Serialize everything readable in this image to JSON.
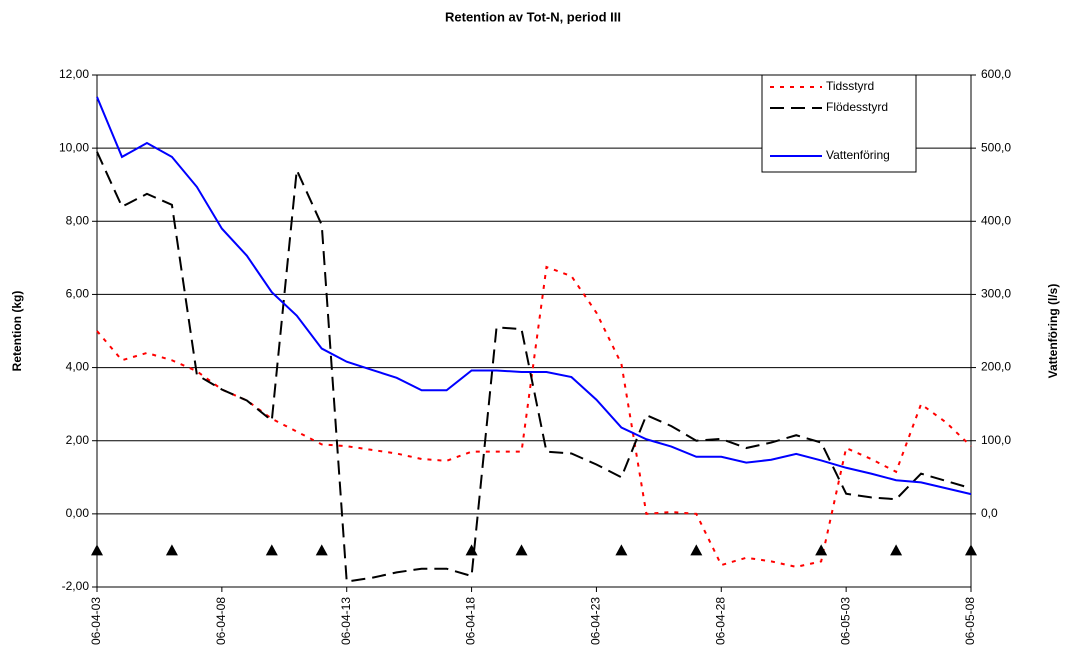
{
  "chart_data": {
    "type": "line",
    "title": "Retention av Tot-N, period III",
    "y_label": "Retention (kg)",
    "y2_label": "Vattenföring (l/s)",
    "categories": [
      "06-04-03",
      null,
      null,
      null,
      null,
      "06-04-08",
      null,
      null,
      null,
      null,
      "06-04-13",
      null,
      null,
      null,
      null,
      "06-04-18",
      null,
      null,
      null,
      null,
      "06-04-23",
      null,
      null,
      null,
      null,
      "06-04-28",
      null,
      null,
      null,
      null,
      "06-05-03",
      null,
      null,
      null,
      null,
      "06-05-08"
    ],
    "ylim": [
      -2,
      12
    ],
    "yticks": [
      {
        "value": -2,
        "label": "-2,00"
      },
      {
        "value": 0,
        "label": "0,00"
      },
      {
        "value": 2,
        "label": "2,00"
      },
      {
        "value": 4,
        "label": "4,00"
      },
      {
        "value": 6,
        "label": "6,00"
      },
      {
        "value": 8,
        "label": "8,00"
      },
      {
        "value": 10,
        "label": "10,00"
      },
      {
        "value": 12,
        "label": "12,00"
      }
    ],
    "y2lim": [
      -100,
      600
    ],
    "y2ticks": [
      {
        "value": 0,
        "label": "0,0"
      },
      {
        "value": 100,
        "label": "100,0"
      },
      {
        "value": 200,
        "label": "200,0"
      },
      {
        "value": 300,
        "label": "300,0"
      },
      {
        "value": 400,
        "label": "400,0"
      },
      {
        "value": 500,
        "label": "500,0"
      },
      {
        "value": 600,
        "label": "600,0"
      }
    ],
    "grid": true,
    "legend": "top-right",
    "series": [
      {
        "name": "Tidsstyrd",
        "color": "#ff0000",
        "style": "dotted",
        "values": [
          5.0,
          4.2,
          4.4,
          4.2,
          3.9,
          3.4,
          3.1,
          2.6,
          2.25,
          1.9,
          1.85,
          1.75,
          1.65,
          1.5,
          1.45,
          1.7,
          1.7,
          1.7,
          6.75,
          6.5,
          5.5,
          4.1,
          0.0,
          0.05,
          0.0,
          -1.4,
          -1.2,
          -1.3,
          -1.45,
          -1.3,
          1.8,
          1.5,
          1.15,
          3.0,
          2.5,
          1.85
        ]
      },
      {
        "name": "Flödesstyrd",
        "color": "#000000",
        "style": "dashed",
        "values": [
          9.9,
          8.4,
          8.75,
          8.45,
          3.8,
          3.4,
          3.1,
          2.55,
          9.4,
          7.9,
          -1.85,
          -1.75,
          -1.6,
          -1.5,
          -1.5,
          -1.7,
          5.1,
          5.05,
          1.7,
          1.65,
          1.35,
          1.0,
          2.7,
          2.4,
          2.0,
          2.05,
          1.8,
          1.95,
          2.15,
          1.95,
          0.55,
          0.45,
          0.4,
          1.1,
          0.9,
          0.7
        ]
      },
      {
        "name": "Vattenföring",
        "color": "#0000ff",
        "style": "solid",
        "axis": "y2",
        "values": [
          570,
          488,
          507,
          488,
          447,
          390,
          353,
          303,
          271,
          226,
          208,
          197,
          186,
          169,
          169,
          196,
          196,
          194,
          194,
          187,
          156,
          118,
          102,
          92,
          78,
          78,
          70,
          74,
          82,
          73,
          63,
          55,
          46,
          43,
          35,
          27
        ]
      },
      {
        "color": "#000000",
        "style": "triangle",
        "values": [
          -1,
          null,
          null,
          -1,
          null,
          null,
          null,
          -1,
          null,
          -1,
          null,
          null,
          null,
          null,
          null,
          -1,
          null,
          -1,
          null,
          null,
          null,
          -1,
          null,
          null,
          -1,
          null,
          null,
          null,
          null,
          -1,
          null,
          null,
          -1,
          null,
          null,
          -1
        ]
      }
    ]
  }
}
